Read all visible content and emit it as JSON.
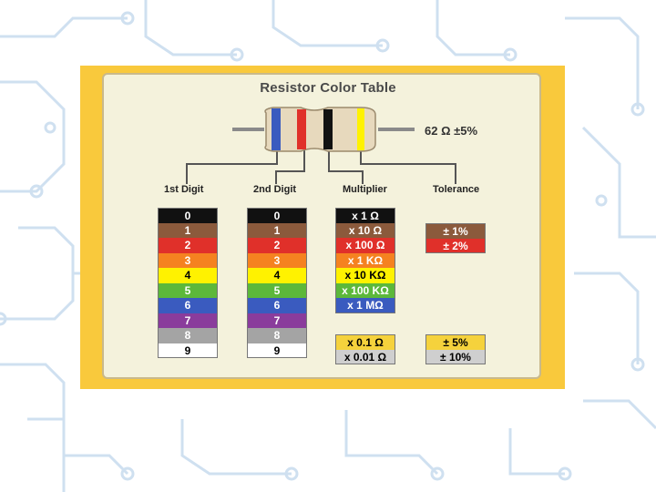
{
  "title": "Resistor Color Table",
  "resistor_value": "62 Ω  ±5%",
  "columns": {
    "first_digit": "1st Digit",
    "second_digit": "2nd Digit",
    "multiplier": "Multiplier",
    "tolerance": "Tolerance"
  },
  "colors": {
    "black": "#111111",
    "brown": "#8b5a3c",
    "red": "#e0302a",
    "orange": "#f58220",
    "yellow": "#fff200",
    "green": "#5cb83a",
    "blue": "#3a5bbf",
    "violet": "#8a3c9c",
    "gray": "#a4a4a4",
    "white": "#ffffff",
    "gold": "#f5d23c",
    "silver": "#cfcfcf"
  },
  "first_digit_rows": [
    {
      "label": "0",
      "color": "black",
      "text_color": "#ffffff"
    },
    {
      "label": "1",
      "color": "brown",
      "text_color": "#ffffff"
    },
    {
      "label": "2",
      "color": "red",
      "text_color": "#ffffff"
    },
    {
      "label": "3",
      "color": "orange",
      "text_color": "#ffffff"
    },
    {
      "label": "4",
      "color": "yellow",
      "text_color": "#000000"
    },
    {
      "label": "5",
      "color": "green",
      "text_color": "#ffffff"
    },
    {
      "label": "6",
      "color": "blue",
      "text_color": "#ffffff"
    },
    {
      "label": "7",
      "color": "violet",
      "text_color": "#ffffff"
    },
    {
      "label": "8",
      "color": "gray",
      "text_color": "#ffffff"
    },
    {
      "label": "9",
      "color": "white",
      "text_color": "#000000"
    }
  ],
  "second_digit_rows": [
    {
      "label": "0",
      "color": "black",
      "text_color": "#ffffff"
    },
    {
      "label": "1",
      "color": "brown",
      "text_color": "#ffffff"
    },
    {
      "label": "2",
      "color": "red",
      "text_color": "#ffffff"
    },
    {
      "label": "3",
      "color": "orange",
      "text_color": "#ffffff"
    },
    {
      "label": "4",
      "color": "yellow",
      "text_color": "#000000"
    },
    {
      "label": "5",
      "color": "green",
      "text_color": "#ffffff"
    },
    {
      "label": "6",
      "color": "blue",
      "text_color": "#ffffff"
    },
    {
      "label": "7",
      "color": "violet",
      "text_color": "#ffffff"
    },
    {
      "label": "8",
      "color": "gray",
      "text_color": "#ffffff"
    },
    {
      "label": "9",
      "color": "white",
      "text_color": "#000000"
    }
  ],
  "multiplier_rows": [
    {
      "label": "x 1 Ω",
      "color": "black",
      "text_color": "#ffffff"
    },
    {
      "label": "x 10 Ω",
      "color": "brown",
      "text_color": "#ffffff"
    },
    {
      "label": "x 100 Ω",
      "color": "red",
      "text_color": "#ffffff"
    },
    {
      "label": "x 1 KΩ",
      "color": "orange",
      "text_color": "#ffffff"
    },
    {
      "label": "x 10 KΩ",
      "color": "yellow",
      "text_color": "#000000"
    },
    {
      "label": "x 100 KΩ",
      "color": "green",
      "text_color": "#ffffff"
    },
    {
      "label": "x 1 MΩ",
      "color": "blue",
      "text_color": "#ffffff"
    }
  ],
  "multiplier_special_rows": [
    {
      "label": "x 0.1 Ω",
      "color": "gold",
      "text_color": "#000000"
    },
    {
      "label": "x 0.01 Ω",
      "color": "silver",
      "text_color": "#000000"
    }
  ],
  "tolerance_rows": [
    {
      "label": "± 1%",
      "color": "brown",
      "text_color": "#ffffff"
    },
    {
      "label": "± 2%",
      "color": "red",
      "text_color": "#ffffff"
    }
  ],
  "tolerance_special_rows": [
    {
      "label": "± 5%",
      "color": "gold",
      "text_color": "#000000"
    },
    {
      "label": "± 10%",
      "color": "silver",
      "text_color": "#000000"
    }
  ],
  "resistor_bands": [
    "blue",
    "red",
    "black",
    "gold"
  ]
}
